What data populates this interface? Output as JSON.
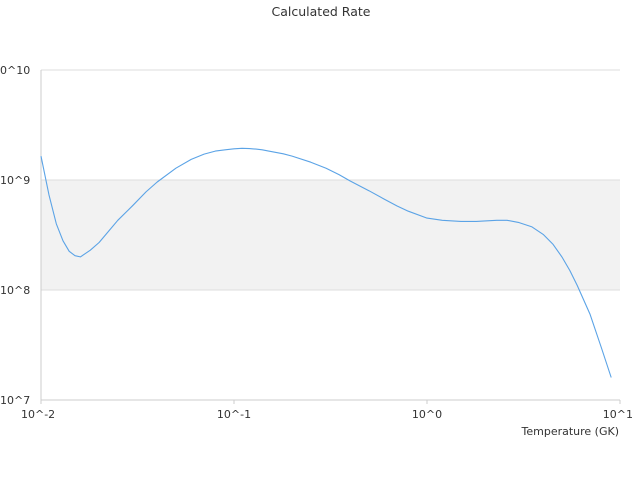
{
  "chart_data": {
    "type": "line",
    "title": "Calculated Rate",
    "xlabel": "Temperature (GK)",
    "ylabel": "",
    "x_scale": "log",
    "y_scale": "log",
    "xlim": [
      0.01,
      10
    ],
    "ylim": [
      10000000,
      10000000000
    ],
    "x_ticks": [
      "10^-2",
      "10^-1",
      "10^0",
      "10^1"
    ],
    "y_ticks": [
      "0^10",
      "10^9",
      "10^8",
      "10^7"
    ],
    "grid": "horizontal",
    "alternating_band": true,
    "legend": "none",
    "series": [
      {
        "color": "#5ba3e6",
        "x": [
          0.01,
          0.011,
          0.012,
          0.013,
          0.014,
          0.015,
          0.016,
          0.017,
          0.018,
          0.02,
          0.022,
          0.025,
          0.03,
          0.035,
          0.04,
          0.05,
          0.06,
          0.07,
          0.08,
          0.09,
          0.1,
          0.11,
          0.12,
          0.13,
          0.14,
          0.15,
          0.18,
          0.2,
          0.25,
          0.3,
          0.35,
          0.4,
          0.5,
          0.6,
          0.7,
          0.8,
          1.0,
          1.2,
          1.5,
          1.8,
          2.0,
          2.3,
          2.6,
          3.0,
          3.5,
          4.0,
          4.5,
          5.0,
          5.5,
          6.0,
          7.0,
          8.0,
          9.0
        ],
        "y": [
          1650000000,
          730000000,
          400000000,
          280000000,
          225000000,
          205000000,
          200000000,
          215000000,
          230000000,
          270000000,
          330000000,
          430000000,
          590000000,
          780000000,
          960000000,
          1280000000,
          1540000000,
          1720000000,
          1830000000,
          1880000000,
          1920000000,
          1940000000,
          1930000000,
          1910000000,
          1880000000,
          1840000000,
          1730000000,
          1650000000,
          1450000000,
          1280000000,
          1120000000,
          980000000,
          800000000,
          670000000,
          580000000,
          520000000,
          450000000,
          430000000,
          420000000,
          420000000,
          425000000,
          430000000,
          430000000,
          410000000,
          375000000,
          320000000,
          260000000,
          200000000,
          150000000,
          110000000,
          60000000,
          30000000,
          16000000
        ]
      }
    ]
  }
}
